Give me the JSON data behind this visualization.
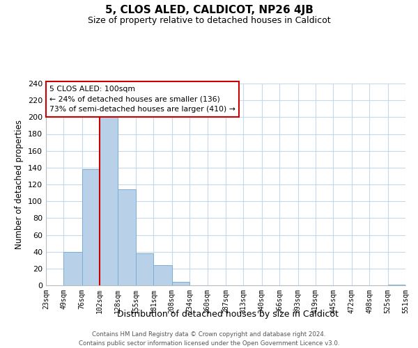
{
  "title": "5, CLOS ALED, CALDICOT, NP26 4JB",
  "subtitle": "Size of property relative to detached houses in Caldicot",
  "xlabel": "Distribution of detached houses by size in Caldicot",
  "ylabel": "Number of detached properties",
  "bin_edges": [
    23,
    49,
    76,
    102,
    128,
    155,
    181,
    208,
    234,
    260,
    287,
    313,
    340,
    366,
    393,
    419,
    445,
    472,
    498,
    525,
    551
  ],
  "bar_heights": [
    0,
    40,
    138,
    200,
    114,
    38,
    24,
    4,
    0,
    0,
    0,
    0,
    0,
    0,
    0,
    0,
    0,
    0,
    0,
    1
  ],
  "bar_color": "#b8d0e8",
  "bar_edge_color": "#7aaed6",
  "vline_x": 102,
  "vline_color": "#cc0000",
  "ylim": [
    0,
    240
  ],
  "yticks": [
    0,
    20,
    40,
    60,
    80,
    100,
    120,
    140,
    160,
    180,
    200,
    220,
    240
  ],
  "annotation_title": "5 CLOS ALED: 100sqm",
  "annotation_line1": "← 24% of detached houses are smaller (136)",
  "annotation_line2": "73% of semi-detached houses are larger (410) →",
  "annotation_box_color": "#ffffff",
  "annotation_box_edge": "#cc0000",
  "footer_line1": "Contains HM Land Registry data © Crown copyright and database right 2024.",
  "footer_line2": "Contains public sector information licensed under the Open Government Licence v3.0.",
  "background_color": "#ffffff",
  "grid_color": "#c8d8ec"
}
